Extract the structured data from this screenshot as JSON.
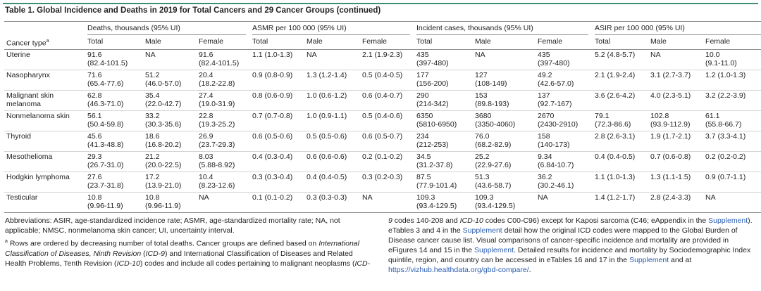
{
  "title": "Table 1. Global Incidence and Deaths in 2019 for Total Cancers and 29 Cancer Groups (continued)",
  "table": {
    "corner": "Cancer type",
    "corner_note": "a",
    "groups": [
      {
        "label": "Deaths, thousands (95% UI)",
        "columns": [
          "Total",
          "Male",
          "Female"
        ]
      },
      {
        "label": "ASMR per 100 000 (95% UI)",
        "columns": [
          "Total",
          "Male",
          "Female"
        ]
      },
      {
        "label": "Incident cases, thousands (95% UI)",
        "columns": [
          "Total",
          "Male",
          "Female"
        ]
      },
      {
        "label": "ASIR per 100 000 (95% UI)",
        "columns": [
          "Total",
          "Male",
          "Female"
        ]
      }
    ],
    "rows": [
      {
        "type": "Uterine",
        "cells": [
          "91.6\n(82.4-101.5)",
          "NA",
          "91.6\n(82.4-101.5)",
          "1.1 (1.0-1.3)",
          "NA",
          "2.1 (1.9-2.3)",
          "435\n(397-480)",
          "NA",
          "435\n(397-480)",
          "5.2 (4.8-5.7)",
          "NA",
          "10.0\n(9.1-11.0)"
        ]
      },
      {
        "type": "Nasopharynx",
        "cells": [
          "71.6\n(65.4-77.6)",
          "51.2\n(46.0-57.0)",
          "20.4\n(18.2-22.8)",
          "0.9 (0.8-0.9)",
          "1.3 (1.2-1.4)",
          "0.5 (0.4-0.5)",
          "177\n(156-200)",
          "127\n(108-149)",
          "49.2\n(42.6-57.0)",
          "2.1 (1.9-2.4)",
          "3.1 (2.7-3.7)",
          "1.2 (1.0-1.3)"
        ]
      },
      {
        "type": "Malignant skin\nmelanoma",
        "cells": [
          "62.8\n(46.3-71.0)",
          "35.4\n(22.0-42.7)",
          "27.4\n(19.0-31.9)",
          "0.8 (0.6-0.9)",
          "1.0 (0.6-1.2)",
          "0.6 (0.4-0.7)",
          "290\n(214-342)",
          "153\n(89.8-193)",
          "137\n(92.7-167)",
          "3.6 (2.6-4.2)",
          "4.0 (2.3-5.1)",
          "3.2 (2.2-3.9)"
        ]
      },
      {
        "type": "Nonmelanoma skin",
        "cells": [
          "56.1\n(50.4-59.8)",
          "33.2\n(30.3-35.6)",
          "22.8\n(19.3-25.2)",
          "0.7 (0.7-0.8)",
          "1.0 (0.9-1.1)",
          "0.5 (0.4-0.6)",
          "6350\n(5810-6950)",
          "3680\n(3350-4060)",
          "2670\n(2430-2910)",
          "79.1\n(72.3-86.6)",
          "102.8\n(93.9-112.9)",
          "61.1\n(55.8-66.7)"
        ]
      },
      {
        "type": "Thyroid",
        "cells": [
          "45.6\n(41.3-48.8)",
          "18.6\n(16.8-20.2)",
          "26.9\n(23.7-29.3)",
          "0.6 (0.5-0.6)",
          "0.5 (0.5-0.6)",
          "0.6 (0.5-0.7)",
          "234\n(212-253)",
          "76.0\n(68.2-82.9)",
          "158\n(140-173)",
          "2.8 (2.6-3.1)",
          "1.9 (1.7-2.1)",
          "3.7 (3.3-4.1)"
        ]
      },
      {
        "type": "Mesothelioma",
        "cells": [
          "29.3\n(26.7-31.0)",
          "21.2\n(20.0-22.5)",
          "8.03\n(5.88-8.92)",
          "0.4 (0.3-0.4)",
          "0.6 (0.6-0.6)",
          "0.2 (0.1-0.2)",
          "34.5\n(31.2-37.8)",
          "25.2\n(22.9-27.6)",
          "9.34\n(6.84-10.7)",
          "0.4 (0.4-0.5)",
          "0.7 (0.6-0.8)",
          "0.2 (0.2-0.2)"
        ]
      },
      {
        "type": "Hodgkin lymphoma",
        "cells": [
          "27.6\n(23.7-31.8)",
          "17.2\n(13.9-21.0)",
          "10.4\n(8.23-12.6)",
          "0.3 (0.3-0.4)",
          "0.4 (0.4-0.5)",
          "0.3 (0.2-0.3)",
          "87.5\n(77.9-101.4)",
          "51.3\n(43.6-58.7)",
          "36.2\n(30.2-46.1)",
          "1.1 (1.0-1.3)",
          "1.3 (1.1-1.5)",
          "0.9 (0.7-1.1)"
        ]
      },
      {
        "type": "Testicular",
        "cells": [
          "10.8\n(9.96-11.9)",
          "10.8\n(9.96-11.9)",
          "NA",
          "0.1 (0.1-0.2)",
          "0.3 (0.3-0.3)",
          "NA",
          "109.3\n(93.4-129.5)",
          "109.3\n(93.4-129.5)",
          "NA",
          "1.4 (1.2-1.7)",
          "2.8 (2.4-3.3)",
          "NA"
        ]
      }
    ]
  },
  "footnotes": {
    "abbreviations": "Abbreviations: ASIR, age-standardized incidence rate; ASMR, age-standardized mortality rate; NA, not applicable; NMSC, nonmelanoma skin cancer; UI, uncertainty interval.",
    "note_marker": "a",
    "note_parts": [
      " Rows are ordered by decreasing number of total deaths. Cancer groups are defined based on ",
      "International Classification of Diseases, Ninth Revision",
      " (",
      "ICD-9",
      ") and ",
      "International Classification of Diseases and Related Health Problems, Tenth Revision",
      " (",
      "ICD-10",
      ") codes and include all codes pertaining to malignant neoplasms (",
      "ICD-9",
      " codes 140-208 and ",
      "ICD-10",
      " codes C00-C96) except for Kaposi sarcoma (C46; eAppendix in the ",
      "Supplement",
      "). eTables 3 and 4 in the ",
      "Supplement",
      " detail how the original ICD codes were mapped to the Global Burden of Disease cancer cause list. Visual comparisons of cancer-specific incidence and mortality are provided in eFigures 14 and 15 in the ",
      "Supplement",
      ". Detailed results for incidence and mortality by Sociodemographic Index quintile, region, and country can be accessed in eTables 16 and 17 in the ",
      "Supplement",
      " and at ",
      "https://vizhub.healthdata.org/gbd-compare/",
      "."
    ]
  }
}
